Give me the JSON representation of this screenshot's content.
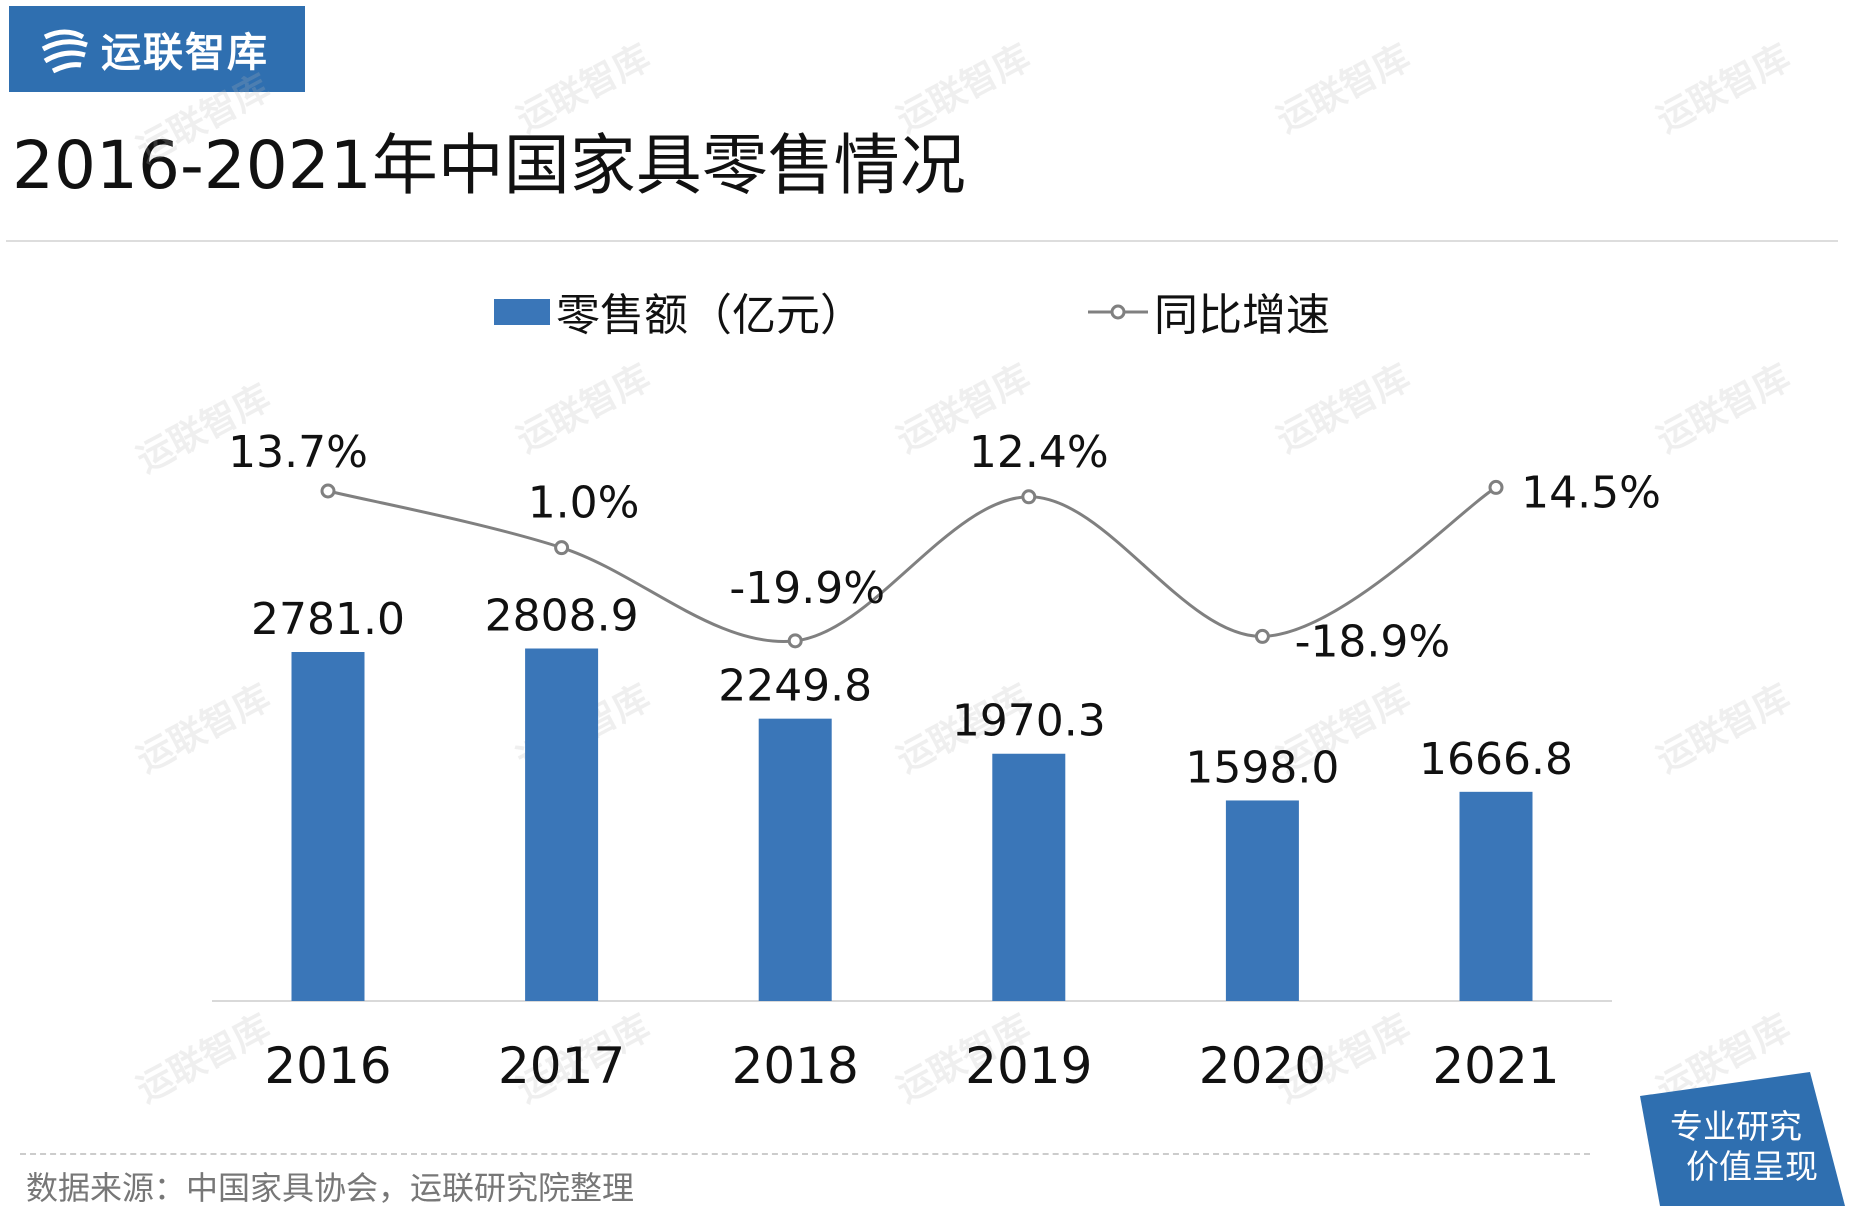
{
  "brand": {
    "name": "运联智库",
    "color": "#2f6fb0"
  },
  "title": "2016-2021年中国家具零售情况",
  "watermark": "运联智库",
  "source": "数据来源：中国家具协会，运联研究院整理",
  "badge": {
    "line1": "专业研究",
    "line2": "价值呈现"
  },
  "chart_data": {
    "type": "bar+line",
    "categories": [
      "2016",
      "2017",
      "2018",
      "2019",
      "2020",
      "2021"
    ],
    "series": [
      {
        "name": "零售额（亿元）",
        "type": "bar",
        "color": "#3a76b8",
        "values": [
          2781.0,
          2808.9,
          2249.8,
          1970.3,
          1598.0,
          1666.8
        ],
        "labels": [
          "2781.0",
          "2808.9",
          "2249.8",
          "1970.3",
          "1598.0",
          "1666.8"
        ]
      },
      {
        "name": "同比增速",
        "type": "line",
        "color": "#808080",
        "marker": "hollow-circle",
        "smooth": true,
        "values": [
          13.7,
          1.0,
          -19.9,
          12.4,
          -18.9,
          14.5
        ],
        "labels": [
          "13.7%",
          "1.0%",
          "-19.9%",
          "12.4%",
          "-18.9%",
          "14.5%"
        ]
      }
    ],
    "legend": "top",
    "grid": false
  }
}
